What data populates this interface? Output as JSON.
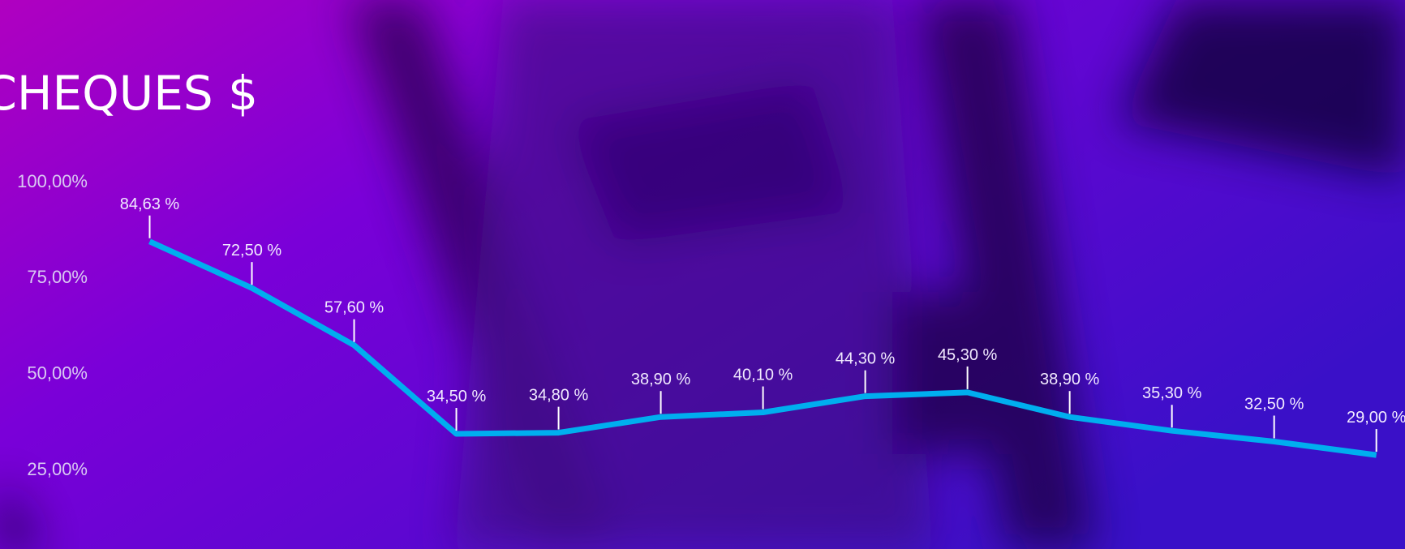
{
  "chart_data": {
    "type": "line",
    "title": "CHEQUES $",
    "series": [
      {
        "name": null,
        "color": "#00aeef",
        "values": [
          84.63,
          72.5,
          57.6,
          34.5,
          34.8,
          38.9,
          40.1,
          44.3,
          45.3,
          38.9,
          35.3,
          32.5,
          29.0
        ],
        "value_labels": [
          "84,63 %",
          "72,50 %",
          "57,60 %",
          "34,50 %",
          "34,80 %",
          "38,90 %",
          "40,10 %",
          "44,30 %",
          "45,30 %",
          "38,90 %",
          "35,30 %",
          "32,50 %",
          "29,00 %"
        ]
      }
    ],
    "ylim": [
      25,
      100
    ],
    "yticks": [
      {
        "value": 25,
        "label": "25,00%"
      },
      {
        "value": 50,
        "label": "50,00%"
      },
      {
        "value": 75,
        "label": "75,00%"
      },
      {
        "value": 100,
        "label": "100,00%"
      }
    ]
  }
}
